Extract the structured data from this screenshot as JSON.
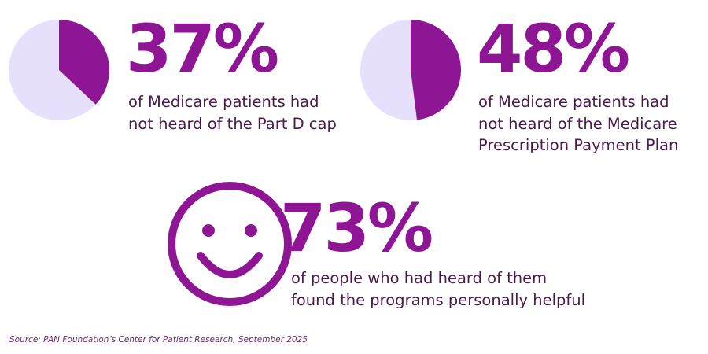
{
  "colors": {
    "accent": "#8e1594",
    "light": "#e7e0fc",
    "text": "#4a1a4a"
  },
  "chart_data": [
    {
      "type": "pie",
      "title": "37%",
      "values": [
        37,
        63
      ],
      "labels": [
        "had not heard of the Part D cap",
        "other"
      ]
    },
    {
      "type": "pie",
      "title": "48%",
      "values": [
        48,
        52
      ],
      "labels": [
        "had not heard of the Medicare Prescription Payment Plan",
        "other"
      ]
    }
  ],
  "stats": [
    {
      "value": "37%",
      "lines": [
        "of Medicare patients had",
        "not heard of the Part D cap"
      ]
    },
    {
      "value": "48%",
      "lines": [
        "of Medicare patients had",
        "not heard of the Medicare",
        "Prescription Payment Plan"
      ]
    },
    {
      "value": "73%",
      "lines": [
        "of people who had heard of them",
        "found the programs personally helpful"
      ]
    }
  ],
  "icon": "smiley-face-icon",
  "source": "Source: PAN Foundation’s Center for Patient Research, September 2025"
}
